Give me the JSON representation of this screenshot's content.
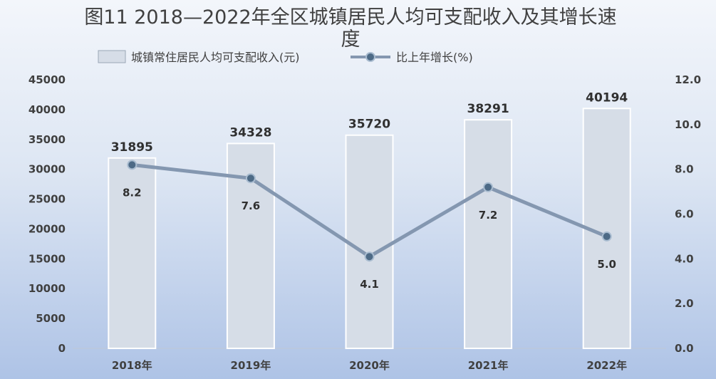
{
  "chart_data": {
    "type": "bar",
    "title_line1": "图11  2018—2022年全区城镇居民人均可支配收入及其增长速",
    "title_line2": "度",
    "categories": [
      "2018年",
      "2019年",
      "2020年",
      "2021年",
      "2022年"
    ],
    "series": [
      {
        "name": "城镇常住居民人均可支配收入(元)",
        "type": "bar",
        "axis": "left",
        "values": [
          31895,
          34328,
          35720,
          38291,
          40194
        ],
        "labels": [
          "31895",
          "34328",
          "35720",
          "38291",
          "40194"
        ]
      },
      {
        "name": "比上年增长(%)",
        "type": "line",
        "axis": "right",
        "values": [
          8.2,
          7.6,
          4.1,
          7.2,
          5.0
        ],
        "labels": [
          "8.2",
          "7.6",
          "4.1",
          "7.2",
          "5.0"
        ]
      }
    ],
    "y_left": {
      "range": [
        0,
        45000
      ],
      "ticks": [
        "0",
        "5000",
        "10000",
        "15000",
        "20000",
        "25000",
        "30000",
        "35000",
        "40000",
        "45000"
      ]
    },
    "y_right": {
      "range": [
        0,
        12
      ],
      "ticks": [
        "0.0",
        "2.0",
        "4.0",
        "6.0",
        "8.0",
        "10.0",
        "12.0"
      ]
    },
    "grid": false,
    "legend_position": "top",
    "colors": {
      "bar_fill": "#d6dde7",
      "bar_stroke": "#ffffff",
      "line": "#8497b0",
      "marker": "#4d6a86",
      "marker_stroke": "#a9bcd0",
      "axis_line": "#c0c8d4"
    }
  }
}
